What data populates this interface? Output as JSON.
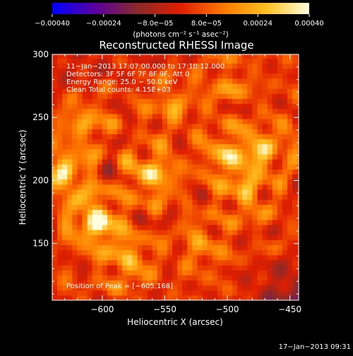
{
  "chart_data": {
    "type": "heatmap",
    "title": "Reconstructed RHESSI Image",
    "xlabel": "Heliocentric X (arcsec)",
    "ylabel": "Heliocentric Y (arcsec)",
    "xlim": [
      -640,
      -443
    ],
    "ylim": [
      105,
      300
    ],
    "x_ticks": [
      -600,
      -550,
      -500,
      -450
    ],
    "y_ticks": [
      150,
      200,
      250,
      300
    ],
    "x_tick_labels": [
      "−600",
      "−550",
      "−500",
      "−450"
    ],
    "y_tick_labels": [
      "150",
      "200",
      "250",
      "300"
    ],
    "colorbar": {
      "range": [
        -0.0004,
        0.0004
      ],
      "ticks": [
        -0.0004,
        -0.00024,
        -8e-05,
        8e-05,
        0.00024,
        0.0004
      ],
      "tick_labels": [
        "−0.00040",
        "−0.00024",
        "−8.0e−05",
        "8.0e−05",
        "0.00024",
        "0.00040"
      ],
      "units_label": "(photons cm⁻² s⁻¹ asec⁻²)",
      "colormap": [
        "#0000ff",
        "#5a00a0",
        "#8b2a2a",
        "#e01e00",
        "#ff7a00",
        "#ffc020",
        "#ffffe0"
      ]
    },
    "annotations": [
      "11−Jan−2013 17:07:00.000 to 17:10:12.000",
      "Detectors: 3F 5F 6F 7F 8F 9F, Att 0",
      "Energy Range: 25.0 − 50.0 keV",
      "Clean     Total counts: 4.15E+03"
    ],
    "peak_label": "Position of Peak = [−605,168]",
    "peak_position": [
      -605,
      168
    ],
    "bright_sources": [
      {
        "x": -605,
        "y": 168,
        "intensity": 0.0004
      },
      {
        "x": -630,
        "y": 205,
        "intensity": 0.0003
      },
      {
        "x": -560,
        "y": 205,
        "intensity": 0.00028
      },
      {
        "x": -500,
        "y": 220,
        "intensity": 0.00025
      },
      {
        "x": -470,
        "y": 225,
        "intensity": 0.00024
      },
      {
        "x": -485,
        "y": 190,
        "intensity": 0.0002
      },
      {
        "x": -580,
        "y": 138,
        "intensity": 0.00022
      },
      {
        "x": -615,
        "y": 245,
        "intensity": 0.00018
      },
      {
        "x": -545,
        "y": 260,
        "intensity": 0.00015
      },
      {
        "x": -520,
        "y": 150,
        "intensity": 0.00014
      },
      {
        "x": -500,
        "y": 275,
        "intensity": 0.00012
      }
    ],
    "timestamp": "17−Jan−2013 09:31"
  }
}
